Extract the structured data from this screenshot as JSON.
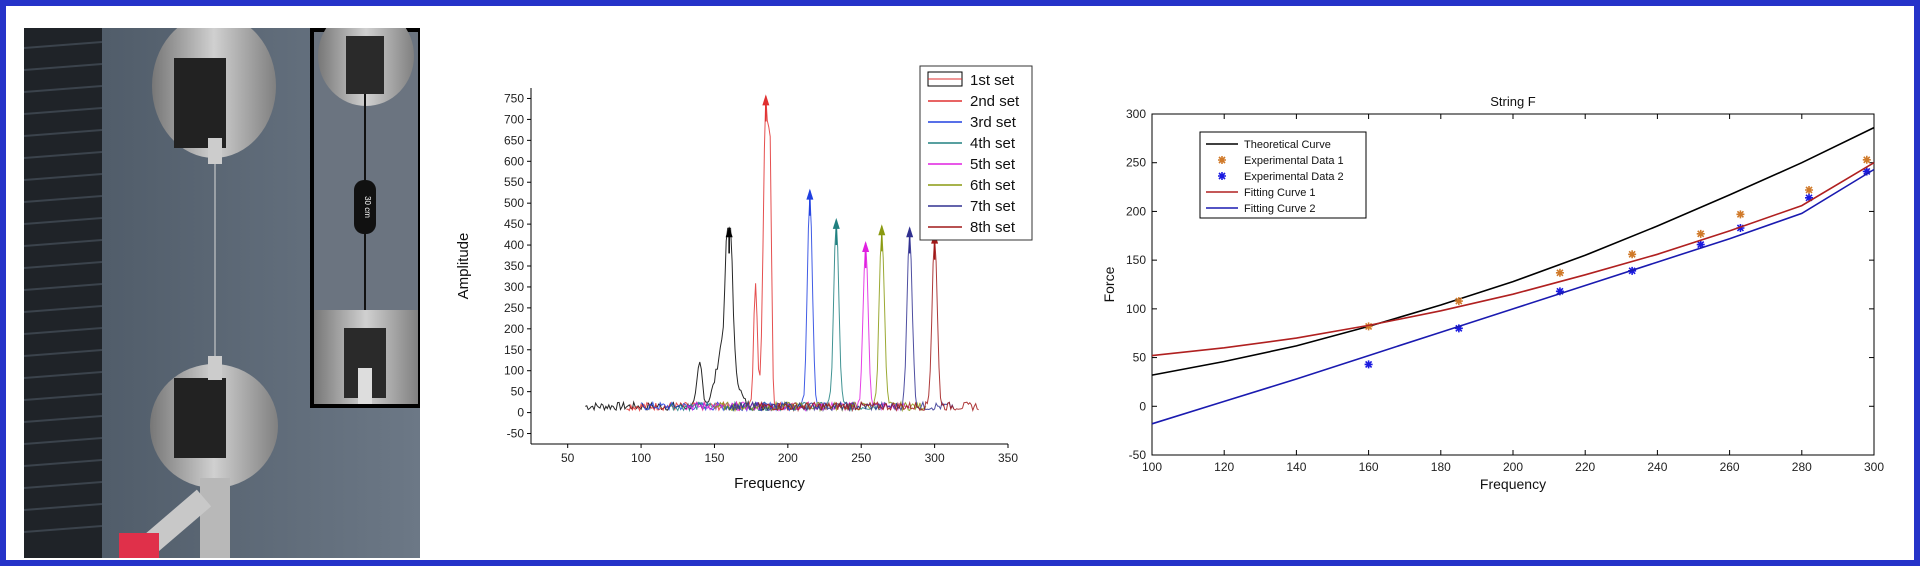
{
  "photo": {
    "scale_label": "30 cm"
  },
  "chart_data": [
    {
      "type": "line",
      "title": "",
      "xlabel": "Frequency",
      "ylabel": "Amplitude",
      "xlim": [
        25,
        350
      ],
      "ylim": [
        -75,
        775
      ],
      "xticks": [
        50,
        100,
        150,
        200,
        250,
        300,
        350
      ],
      "yticks": [
        -50,
        0,
        50,
        100,
        150,
        200,
        250,
        300,
        350,
        400,
        450,
        500,
        550,
        600,
        650,
        700,
        750
      ],
      "legend_position": "top-right",
      "series": [
        {
          "name": "1st set",
          "color": "#000000",
          "peak": [
            160,
            440
          ]
        },
        {
          "name": "2nd set",
          "color": "#e03030",
          "peak": [
            185,
            755
          ]
        },
        {
          "name": "3rd set",
          "color": "#2040e0",
          "peak": [
            215,
            530
          ]
        },
        {
          "name": "4th set",
          "color": "#208080",
          "peak": [
            233,
            460
          ]
        },
        {
          "name": "5th set",
          "color": "#e020e0",
          "peak": [
            253,
            405
          ]
        },
        {
          "name": "6th set",
          "color": "#8a9a10",
          "peak": [
            264,
            445
          ]
        },
        {
          "name": "7th set",
          "color": "#303090",
          "peak": [
            283,
            440
          ]
        },
        {
          "name": "8th set",
          "color": "#a01818",
          "peak": [
            300,
            425
          ]
        }
      ]
    },
    {
      "type": "line",
      "title": "String F",
      "xlabel": "Frequency",
      "ylabel": "Force",
      "xlim": [
        100,
        300
      ],
      "ylim": [
        -50,
        300
      ],
      "xticks": [
        100,
        120,
        140,
        160,
        180,
        200,
        220,
        240,
        260,
        280,
        300
      ],
      "yticks": [
        -50,
        0,
        50,
        100,
        150,
        200,
        250,
        300
      ],
      "legend_position": "top-left",
      "series": [
        {
          "name": "Theoretical Curve",
          "kind": "line",
          "color": "#000000",
          "x": [
            100,
            120,
            140,
            160,
            180,
            200,
            220,
            240,
            260,
            280,
            300
          ],
          "y": [
            32,
            46,
            62,
            82,
            104,
            128,
            155,
            185,
            217,
            250,
            286
          ]
        },
        {
          "name": "Experimental Data 1",
          "kind": "marker",
          "color": "#d07a2a",
          "x": [
            160,
            185,
            213,
            233,
            252,
            263,
            282,
            298
          ],
          "y": [
            82,
            108,
            137,
            156,
            177,
            197,
            222,
            253
          ]
        },
        {
          "name": "Experimental Data 2",
          "kind": "marker",
          "color": "#1a1ae0",
          "x": [
            160,
            185,
            213,
            233,
            252,
            263,
            282,
            298
          ],
          "y": [
            43,
            80,
            118,
            139,
            166,
            183,
            214,
            241
          ]
        },
        {
          "name": "Fitting Curve 1",
          "kind": "line",
          "color": "#b02020",
          "x": [
            100,
            120,
            140,
            160,
            180,
            200,
            220,
            240,
            260,
            280,
            300
          ],
          "y": [
            52,
            60,
            70,
            83,
            98,
            115,
            135,
            156,
            180,
            206,
            250
          ]
        },
        {
          "name": "Fitting Curve 2",
          "kind": "line",
          "color": "#1a1ab0",
          "x": [
            100,
            120,
            140,
            160,
            180,
            200,
            220,
            240,
            260,
            280,
            300
          ],
          "y": [
            -18,
            5,
            28,
            52,
            76,
            100,
            124,
            148,
            172,
            198,
            243
          ]
        }
      ]
    }
  ]
}
